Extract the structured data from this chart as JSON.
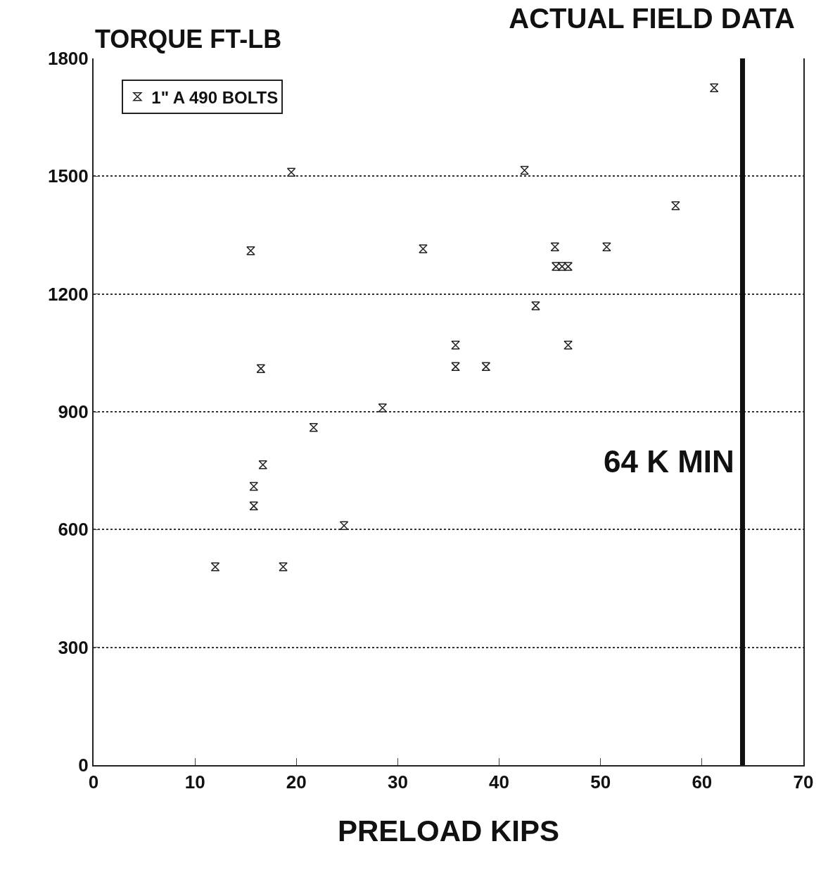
{
  "chart_data": {
    "type": "scatter",
    "title": "ACTUAL FIELD DATA",
    "ylabel": "TORQUE FT-LB",
    "xlabel": "PRELOAD KIPS",
    "series": [
      {
        "name": "1\" A 490 BOLTS",
        "color": "#222222",
        "x": [
          12,
          15.5,
          19.5,
          16.5,
          21.7,
          16.7,
          15.8,
          15.8,
          18.7,
          24.7,
          28.5,
          32.5,
          35.7,
          35.7,
          38.7,
          42.5,
          43.6,
          45.5,
          45.6,
          46.2,
          46.8,
          46.8,
          50.6,
          57.4,
          61.2
        ],
        "values": [
          505,
          1310,
          1510,
          1010,
          860,
          765,
          710,
          660,
          505,
          610,
          910,
          1315,
          1070,
          1015,
          1015,
          1515,
          1170,
          1320,
          1270,
          1270,
          1270,
          1070,
          1320,
          1425,
          1725
        ]
      }
    ],
    "xlim": [
      0,
      70
    ],
    "xticks": [
      0,
      10,
      20,
      30,
      40,
      50,
      60,
      70
    ],
    "ylim": [
      0,
      1800
    ],
    "yticks": [
      0,
      300,
      600,
      900,
      1200,
      1500,
      1800
    ],
    "grid": "y",
    "legend": "top left",
    "ref_lines": [
      {
        "axis": "x",
        "value": 64,
        "label": "64 K MIN",
        "color": "#111111"
      }
    ]
  }
}
